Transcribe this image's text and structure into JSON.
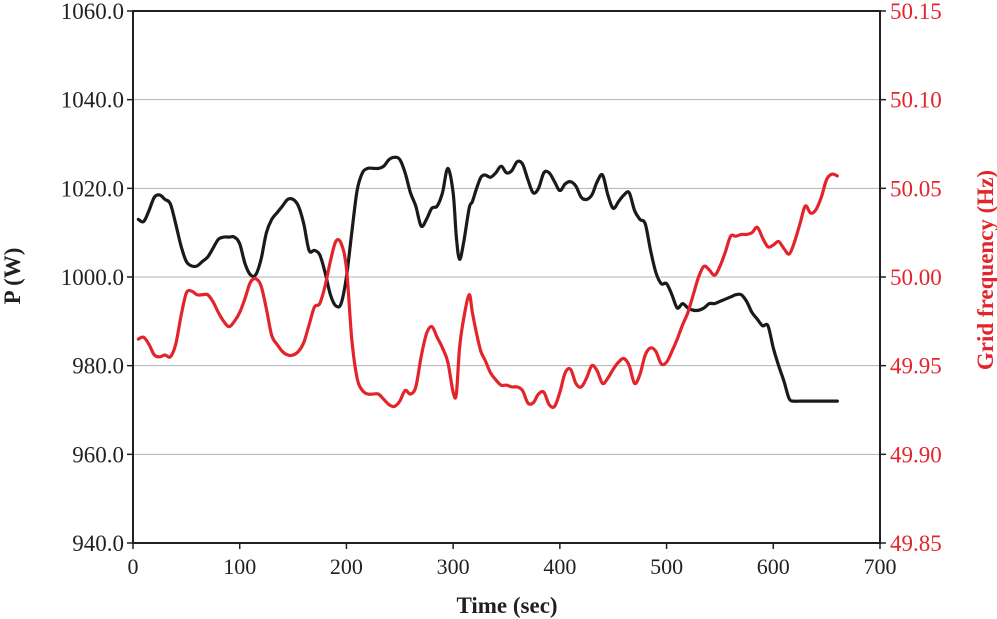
{
  "chart_data": {
    "type": "line",
    "title": "",
    "xlabel": "Time (sec)",
    "ylabel": "P (W)",
    "y2label": "Grid frequency (Hz)",
    "xlim": [
      0,
      700
    ],
    "ylim": [
      940,
      1060
    ],
    "y2lim": [
      49.85,
      50.15
    ],
    "grid": "horizontal",
    "x_ticks": [
      {
        "value": 0,
        "label": "0"
      },
      {
        "value": 100,
        "label": "100"
      },
      {
        "value": 200,
        "label": "200"
      },
      {
        "value": 300,
        "label": "300"
      },
      {
        "value": 400,
        "label": "400"
      },
      {
        "value": 500,
        "label": "500"
      },
      {
        "value": 600,
        "label": "600"
      },
      {
        "value": 700,
        "label": "700"
      }
    ],
    "y_ticks": [
      {
        "value": 940,
        "label": "940.0"
      },
      {
        "value": 960,
        "label": "960.0"
      },
      {
        "value": 980,
        "label": "980.0"
      },
      {
        "value": 1000,
        "label": "1000.0"
      },
      {
        "value": 1020,
        "label": "1020.0"
      },
      {
        "value": 1040,
        "label": "1040.0"
      },
      {
        "value": 1060,
        "label": "1060.0"
      }
    ],
    "y2_ticks": [
      {
        "value": 49.85,
        "label": "49.85"
      },
      {
        "value": 49.9,
        "label": "49.90"
      },
      {
        "value": 49.95,
        "label": "49.95"
      },
      {
        "value": 50.0,
        "label": "50.00"
      },
      {
        "value": 50.05,
        "label": "50.05"
      },
      {
        "value": 50.1,
        "label": "50.10"
      },
      {
        "value": 50.15,
        "label": "50.15"
      }
    ],
    "colors": {
      "power": "#1a1a1a",
      "frequency": "#e3242b",
      "axis": "#231f20",
      "grid": "#b3b3b3"
    },
    "series": [
      {
        "name": "P (W)",
        "axis": "left",
        "color": "#1a1a1a",
        "x": [
          5,
          10,
          15,
          20,
          25,
          30,
          35,
          40,
          45,
          50,
          55,
          60,
          65,
          70,
          75,
          80,
          85,
          90,
          95,
          100,
          105,
          110,
          115,
          120,
          125,
          130,
          135,
          140,
          145,
          150,
          155,
          160,
          165,
          170,
          175,
          180,
          185,
          190,
          195,
          200,
          205,
          210,
          215,
          220,
          225,
          230,
          235,
          240,
          245,
          250,
          255,
          260,
          265,
          270,
          275,
          280,
          285,
          290,
          295,
          300,
          303,
          306,
          310,
          315,
          318,
          322,
          326,
          330,
          335,
          340,
          345,
          350,
          355,
          360,
          365,
          370,
          375,
          380,
          385,
          390,
          395,
          400,
          405,
          410,
          415,
          420,
          425,
          430,
          435,
          440,
          445,
          450,
          455,
          460,
          465,
          470,
          475,
          480,
          485,
          490,
          495,
          500,
          505,
          510,
          515,
          520,
          525,
          530,
          535,
          540,
          545,
          550,
          555,
          560,
          565,
          570,
          575,
          580,
          585,
          590,
          595,
          600,
          605,
          610,
          615,
          620,
          625,
          630,
          635,
          640,
          645,
          650,
          655,
          660
        ],
        "values": [
          1013,
          1012.5,
          1015,
          1018,
          1018.5,
          1017.5,
          1016.5,
          1012,
          1007,
          1003.5,
          1002.5,
          1002.5,
          1003.5,
          1004.5,
          1006.5,
          1008.5,
          1009,
          1009,
          1009,
          1007.5,
          1003,
          1000.5,
          1000.5,
          1004,
          1010,
          1013,
          1014.5,
          1016,
          1017.5,
          1017.5,
          1016,
          1012,
          1006,
          1006,
          1005,
          1001,
          996,
          993.5,
          994,
          1000,
          1010,
          1019.5,
          1023.5,
          1024.5,
          1024.5,
          1024.5,
          1025,
          1026.5,
          1027,
          1026.5,
          1023.5,
          1019,
          1016,
          1011.5,
          1013,
          1015.5,
          1016,
          1019,
          1024.5,
          1019,
          1009,
          1004,
          1008,
          1015.5,
          1017,
          1020,
          1022.5,
          1023,
          1022.5,
          1023.5,
          1025,
          1023.5,
          1024,
          1026,
          1025.5,
          1022,
          1019,
          1020,
          1023.5,
          1023.5,
          1021.5,
          1019.5,
          1021,
          1021.5,
          1020.5,
          1018,
          1017.5,
          1018.5,
          1021.5,
          1023,
          1018.5,
          1015.5,
          1017,
          1018.5,
          1019,
          1015,
          1013,
          1012,
          1006,
          1001,
          998.5,
          998.5,
          996,
          993,
          994,
          993,
          992.5,
          992.5,
          993,
          994,
          994,
          994.5,
          995,
          995.5,
          996,
          996,
          994.5,
          992,
          990.5,
          989,
          989,
          984,
          980,
          976.5,
          972.5,
          972,
          972,
          972,
          972,
          972,
          972,
          972,
          972,
          972
        ]
      },
      {
        "name": "Grid frequency (Hz)",
        "axis": "right",
        "color": "#e3242b",
        "x": [
          5,
          10,
          15,
          20,
          25,
          30,
          35,
          40,
          45,
          50,
          55,
          60,
          65,
          70,
          75,
          80,
          85,
          90,
          95,
          100,
          105,
          110,
          115,
          120,
          125,
          130,
          135,
          140,
          145,
          150,
          155,
          160,
          165,
          170,
          175,
          180,
          185,
          190,
          195,
          200,
          205,
          210,
          215,
          220,
          225,
          230,
          235,
          240,
          245,
          250,
          255,
          260,
          265,
          270,
          275,
          280,
          285,
          290,
          295,
          300,
          303,
          306,
          310,
          315,
          318,
          322,
          326,
          330,
          335,
          340,
          345,
          350,
          355,
          360,
          365,
          370,
          375,
          380,
          385,
          390,
          395,
          400,
          405,
          410,
          415,
          420,
          425,
          430,
          435,
          440,
          445,
          450,
          455,
          460,
          465,
          470,
          475,
          480,
          485,
          490,
          495,
          500,
          505,
          510,
          515,
          520,
          525,
          530,
          535,
          540,
          545,
          550,
          555,
          560,
          565,
          570,
          575,
          580,
          585,
          590,
          595,
          600,
          605,
          610,
          615,
          620,
          625,
          630,
          635,
          640,
          645,
          650,
          655,
          660
        ],
        "values": [
          49.965,
          49.966,
          49.962,
          49.956,
          49.955,
          49.956,
          49.955,
          49.962,
          49.978,
          49.991,
          49.992,
          49.99,
          49.99,
          49.99,
          49.986,
          49.98,
          49.975,
          49.972,
          49.975,
          49.98,
          49.988,
          49.997,
          49.999,
          49.995,
          49.982,
          49.967,
          49.962,
          49.958,
          49.956,
          49.956,
          49.958,
          49.963,
          49.973,
          49.983,
          49.985,
          49.995,
          50.009,
          50.02,
          50.019,
          50.005,
          49.965,
          49.943,
          49.936,
          49.934,
          49.934,
          49.934,
          49.931,
          49.928,
          49.927,
          49.93,
          49.936,
          49.934,
          49.938,
          49.955,
          49.968,
          49.972,
          49.966,
          49.96,
          49.952,
          49.935,
          49.934,
          49.96,
          49.977,
          49.99,
          49.98,
          49.968,
          49.958,
          49.953,
          49.946,
          49.942,
          49.939,
          49.939,
          49.938,
          49.938,
          49.936,
          49.929,
          49.929,
          49.934,
          49.935,
          49.928,
          49.927,
          49.935,
          49.946,
          49.948,
          49.94,
          49.938,
          49.943,
          49.95,
          49.947,
          49.94,
          49.943,
          49.948,
          49.952,
          49.954,
          49.95,
          49.94,
          49.945,
          49.956,
          49.96,
          49.958,
          49.951,
          49.952,
          49.958,
          49.965,
          49.973,
          49.98,
          49.99,
          50.0,
          50.006,
          50.004,
          50.001,
          50.006,
          50.014,
          50.023,
          50.023,
          50.024,
          50.024,
          50.025,
          50.028,
          50.022,
          50.017,
          50.018,
          50.02,
          50.016,
          50.013,
          50.02,
          50.03,
          50.04,
          50.036,
          50.038,
          50.045,
          50.055,
          50.058,
          50.057
        ]
      }
    ]
  }
}
